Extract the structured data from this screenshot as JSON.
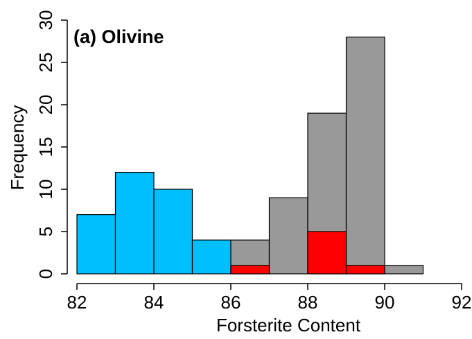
{
  "chart_data": {
    "type": "bar",
    "title": "(a) Olivine",
    "xlabel": "Forsterite Content",
    "ylabel": "Frequency",
    "xlim": [
      82,
      92
    ],
    "ylim": [
      0,
      30
    ],
    "xticks": [
      "82",
      "84",
      "86",
      "88",
      "90",
      "92"
    ],
    "yticks": [
      "0",
      "5",
      "10",
      "15",
      "20",
      "25",
      "30"
    ],
    "bin_width": 1,
    "grid": false,
    "series": [
      {
        "color": "#00BFFF",
        "bins": [
          {
            "start": 82,
            "end": 83,
            "value": 7
          },
          {
            "start": 83,
            "end": 84,
            "value": 12
          },
          {
            "start": 84,
            "end": 85,
            "value": 10
          },
          {
            "start": 85,
            "end": 86,
            "value": 4
          }
        ]
      },
      {
        "color": "#999999",
        "bins": [
          {
            "start": 86,
            "end": 87,
            "value": 4
          },
          {
            "start": 87,
            "end": 88,
            "value": 9
          },
          {
            "start": 88,
            "end": 89,
            "value": 19
          },
          {
            "start": 89,
            "end": 90,
            "value": 28
          },
          {
            "start": 90,
            "end": 91,
            "value": 1
          }
        ]
      },
      {
        "color": "#FF0000",
        "bins": [
          {
            "start": 86,
            "end": 87,
            "value": 1
          },
          {
            "start": 88,
            "end": 89,
            "value": 5
          },
          {
            "start": 89,
            "end": 90,
            "value": 1
          }
        ]
      }
    ]
  }
}
